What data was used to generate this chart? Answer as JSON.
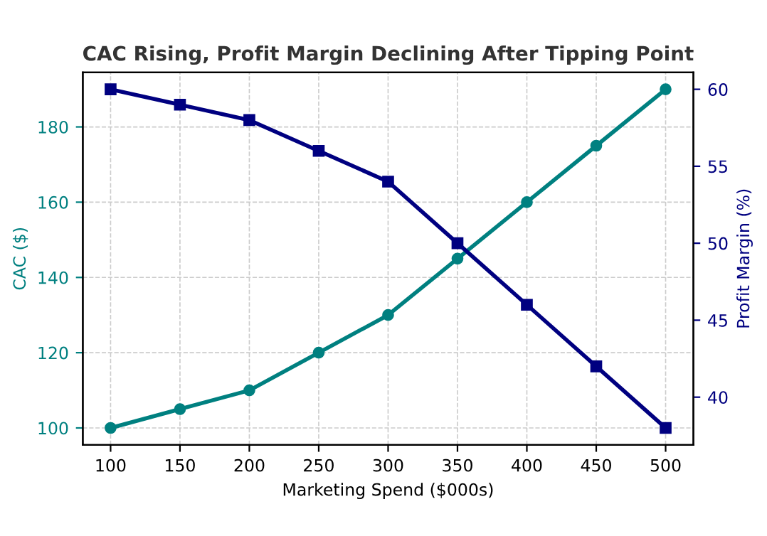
{
  "chart_data": {
    "type": "line",
    "title": "CAC Rising, Profit Margin Declining After Tipping Point",
    "xlabel": "Marketing Spend ($000s)",
    "ylabel": "CAC ($)",
    "y2label": "Profit Margin (%)",
    "x": [
      100,
      150,
      200,
      250,
      300,
      350,
      400,
      450,
      500
    ],
    "series": [
      {
        "color": "#008080",
        "marker": "circle",
        "values": [
          100,
          105,
          110,
          120,
          130,
          145,
          160,
          175,
          190
        ]
      },
      {
        "color": "#000080",
        "marker": "square",
        "axis": "y2",
        "values": [
          60,
          59,
          58,
          56,
          54,
          50,
          46,
          42,
          38
        ]
      }
    ],
    "xlim": [
      80,
      520
    ],
    "xticks": [
      100,
      150,
      200,
      250,
      300,
      350,
      400,
      450,
      500
    ],
    "ylim": [
      95.5,
      194.5
    ],
    "yticks": [
      100,
      120,
      140,
      160,
      180
    ],
    "y2lim": [
      36.9,
      61.1
    ],
    "y2ticks": [
      40,
      45,
      50,
      55,
      60
    ],
    "grid": true,
    "line_style": "solid",
    "legend": false
  }
}
